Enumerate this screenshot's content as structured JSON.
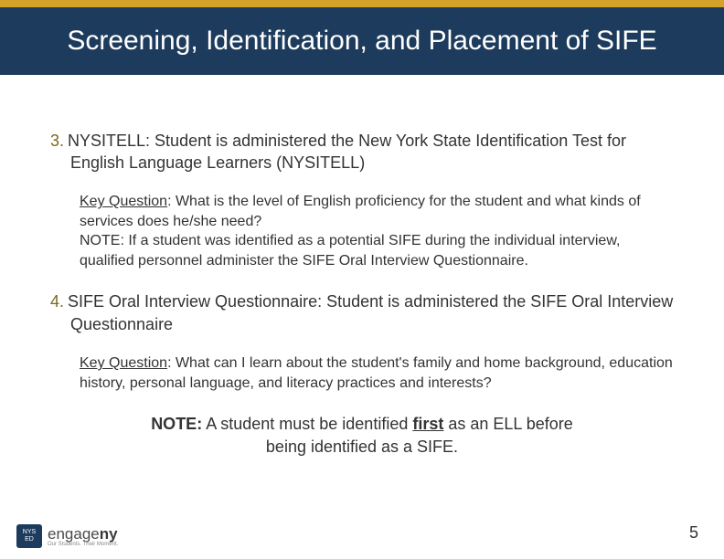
{
  "header": {
    "title": "Screening, Identification, and Placement of SIFE",
    "band_color": "#1d3b5c",
    "gold_color": "#d4a229",
    "title_color": "#ffffff",
    "title_fontsize": 30
  },
  "body": {
    "text_color": "#333333",
    "number_color": "#7b6a1c",
    "lead_fontsize": 18,
    "sub_fontsize": 16,
    "items": [
      {
        "number": "3.",
        "lead": "NYSITELL:  Student is administered the New York State Identification Test for English Language Learners (NYSITELL)",
        "key_question_label": "Key Question",
        "key_question": ": What is the level of English proficiency for the student and what kinds of services does he/she need?",
        "note_label": "NOTE:",
        "note": " If a student was identified as a potential SIFE during the individual interview, qualified personnel administer the SIFE Oral Interview Questionnaire."
      },
      {
        "number": "4.",
        "lead": "SIFE Oral Interview Questionnaire: Student is administered the SIFE Oral Interview Questionnaire",
        "key_question_label": "Key Question",
        "key_question": ": What can I learn about the student's family and home background, education history, personal language, and literacy practices and interests?"
      }
    ],
    "final_note": {
      "label": "NOTE:",
      "before_first": " A student must be identified ",
      "first_word": "first",
      "after_first": " as an ELL before being identified as a SIFE."
    }
  },
  "footer": {
    "badge_top": "NYS",
    "badge_bottom": "ED",
    "engage_prefix": "engage",
    "engage_suffix": "ny",
    "tagline": "Our Students. Their Moment.",
    "page_number": "5"
  }
}
